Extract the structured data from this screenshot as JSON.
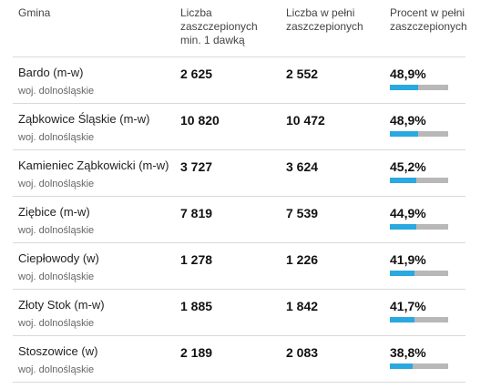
{
  "header": {
    "gmina": "Gmina",
    "min1": "Liczba zaszczepionych min. 1 dawką",
    "full": "Liczba w pełni zaszczepionych",
    "pct": "Procent w pełni zaszczepionych"
  },
  "colors": {
    "bar_fill": "#2aa8e0",
    "bar_track": "#b8b8b8"
  },
  "rows": [
    {
      "name": "Bardo (m-w)",
      "region": "woj. dolnośląskie",
      "min1": "2 625",
      "full": "2 552",
      "pct": "48,9%",
      "fraction": 0.489
    },
    {
      "name": "Ząbkowice Śląskie (m-w)",
      "region": "woj. dolnośląskie",
      "min1": "10 820",
      "full": "10 472",
      "pct": "48,9%",
      "fraction": 0.489
    },
    {
      "name": "Kamieniec Ząbkowicki (m-w)",
      "region": "woj. dolnośląskie",
      "min1": "3 727",
      "full": "3 624",
      "pct": "45,2%",
      "fraction": 0.452
    },
    {
      "name": "Ziębice (m-w)",
      "region": "woj. dolnośląskie",
      "min1": "7 819",
      "full": "7 539",
      "pct": "44,9%",
      "fraction": 0.449
    },
    {
      "name": "Ciepłowody (w)",
      "region": "woj. dolnośląskie",
      "min1": "1 278",
      "full": "1 226",
      "pct": "41,9%",
      "fraction": 0.419
    },
    {
      "name": "Złoty Stok (m-w)",
      "region": "woj. dolnośląskie",
      "min1": "1 885",
      "full": "1 842",
      "pct": "41,7%",
      "fraction": 0.417
    },
    {
      "name": "Stoszowice (w)",
      "region": "woj. dolnośląskie",
      "min1": "2 189",
      "full": "2 083",
      "pct": "38,8%",
      "fraction": 0.388
    }
  ]
}
